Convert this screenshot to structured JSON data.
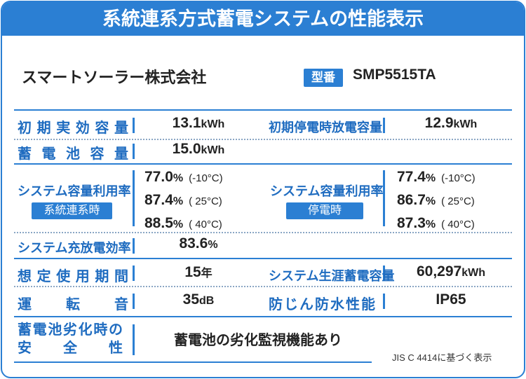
{
  "header": {
    "title": "系統連系方式蓄電システムの性能表示"
  },
  "company": "スマートソーラー株式会社",
  "model": {
    "label": "型番",
    "value": "SMP5515TA"
  },
  "rows": [
    {
      "left": {
        "label": "初期実効容量",
        "value": "13.1",
        "unit": "kWh"
      },
      "right": {
        "label": "初期停電時放電容量",
        "value": "12.9",
        "unit": "kWh"
      }
    },
    {
      "left": {
        "label": "蓄電池容量",
        "value": "15.0",
        "unit": "kWh"
      }
    },
    {
      "left": {
        "label": "システム容量利用率",
        "badge": "系統連系時",
        "values": [
          {
            "value": "77.0",
            "unit": "%",
            "condition": "(-10°C)"
          },
          {
            "value": "87.4",
            "unit": "%",
            "condition": "( 25°C)"
          },
          {
            "value": "88.5",
            "unit": "%",
            "condition": "( 40°C)"
          }
        ]
      },
      "right": {
        "label": "システム容量利用率",
        "badge": "停電時",
        "values": [
          {
            "value": "77.4",
            "unit": "%",
            "condition": "(-10°C)"
          },
          {
            "value": "86.7",
            "unit": "%",
            "condition": "( 25°C)"
          },
          {
            "value": "87.3",
            "unit": "%",
            "condition": "( 40°C)"
          }
        ]
      }
    },
    {
      "left": {
        "label": "システム充放電効率",
        "value": "83.6",
        "unit": "%"
      }
    },
    {
      "left": {
        "label": "想定使用期間",
        "value": "15",
        "unit": "年"
      },
      "right": {
        "label": "システム生涯蓄電容量",
        "value": "60,297",
        "unit": "kWh"
      }
    },
    {
      "left": {
        "label": "運転音",
        "value": "35",
        "unit": "dB"
      },
      "right": {
        "label": "防じん防水性能",
        "value": "IP65"
      }
    },
    {
      "left": {
        "label_lines": [
          "蓄電池劣化時の",
          "安全性"
        ],
        "value": "蓄電池の劣化監視機能あり"
      }
    }
  ],
  "footnote": "JIS C 4414に基づく表示"
}
